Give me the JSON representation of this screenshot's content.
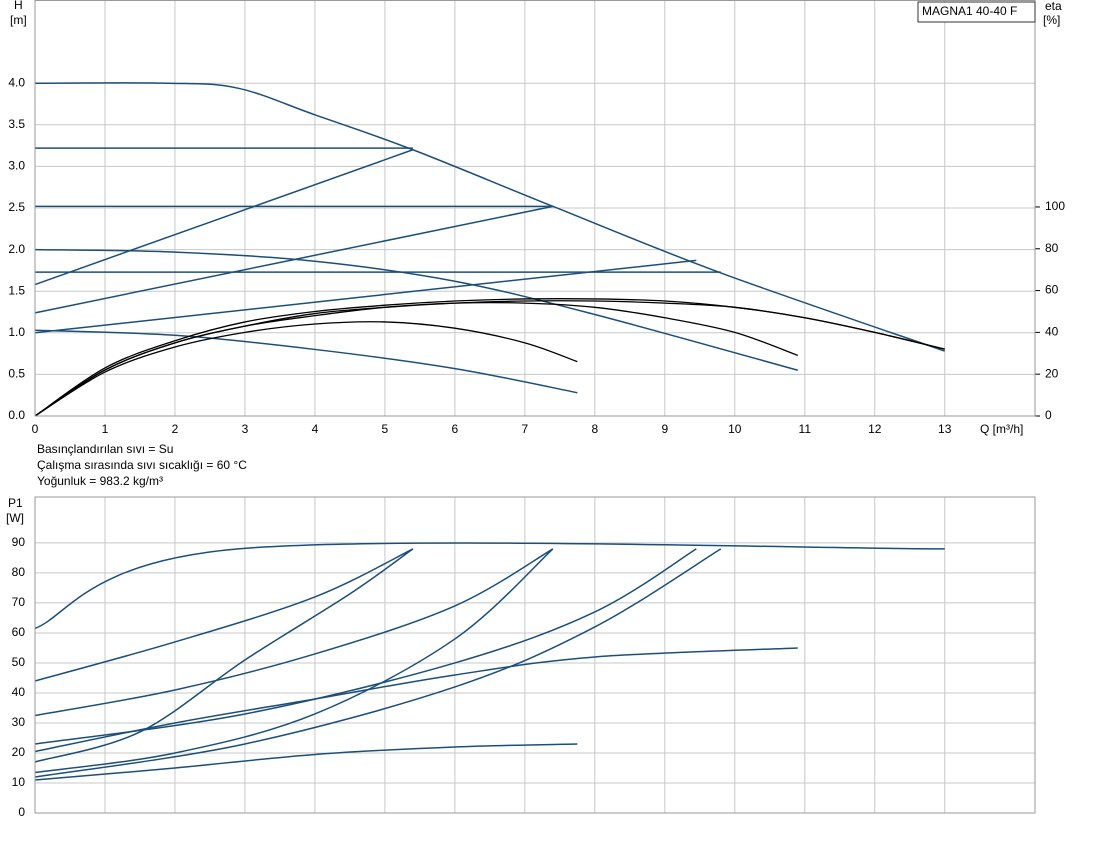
{
  "chart_data": [
    {
      "type": "line",
      "title": "MAGNA1 40-40 F",
      "ylabel": "H",
      "yunit": "[m]",
      "y2label": "eta",
      "y2unit": "[%]",
      "xlabel": "Q [m³/h]",
      "annotations": [
        "Basınçlandırılan sıvı = Su",
        "Çalışma sırasında sıvı sıcaklığı = 60 °C",
        "Yoğunluk = 983.2 kg/m³"
      ],
      "xlim": [
        0,
        14.29
      ],
      "xticks": [
        0,
        1,
        2,
        3,
        4,
        5,
        6,
        7,
        8,
        9,
        10,
        11,
        12,
        13
      ],
      "ylim": [
        0,
        5
      ],
      "yticks": [
        {
          "value": 0,
          "label": "0.0"
        },
        0.5,
        {
          "value": 1,
          "label": "1.0"
        },
        1.5,
        {
          "value": 2,
          "label": "2.0"
        },
        2.5,
        {
          "value": 3,
          "label": "3.0"
        },
        3.5,
        {
          "value": 4,
          "label": "4.0"
        }
      ],
      "y2lim": [
        0,
        199
      ],
      "y2ticks": [
        0,
        20,
        40,
        60,
        80,
        100
      ],
      "grid": true,
      "series": [
        {
          "color": "#1b4f7a",
          "x": [
            0,
            1.9,
            2.9,
            4,
            5.4,
            7.4,
            9.8,
            13
          ],
          "values": [
            4.0,
            4.0,
            3.94,
            3.62,
            3.2,
            2.52,
            1.72,
            0.78
          ]
        },
        {
          "color": "#1b4f7a",
          "x": [
            0,
            5.4
          ],
          "values": [
            3.22,
            3.22
          ]
        },
        {
          "color": "#1b4f7a",
          "x": [
            0,
            7.4
          ],
          "values": [
            2.52,
            2.52
          ]
        },
        {
          "color": "#1b4f7a",
          "x": [
            0,
            9.8
          ],
          "values": [
            1.73,
            1.73
          ]
        },
        {
          "color": "#1b4f7a",
          "x": [
            0,
            5.4
          ],
          "values": [
            1.58,
            3.2
          ]
        },
        {
          "color": "#1b4f7a",
          "x": [
            0,
            7.4
          ],
          "values": [
            1.24,
            2.52
          ]
        },
        {
          "color": "#1b4f7a",
          "x": [
            0,
            9.45
          ],
          "values": [
            1.0,
            1.87
          ]
        },
        {
          "color": "#1b4f7a",
          "x": [
            0,
            2,
            4,
            6,
            8,
            10.9
          ],
          "values": [
            2.0,
            1.97,
            1.86,
            1.62,
            1.22,
            0.55
          ]
        },
        {
          "color": "#1b4f7a",
          "x": [
            0,
            2,
            4,
            6,
            7.75
          ],
          "values": [
            1.03,
            0.97,
            0.8,
            0.57,
            0.28
          ]
        },
        {
          "color": "#000000",
          "axis": "y2",
          "x": [
            0,
            1,
            2,
            3,
            4,
            5,
            6,
            7,
            7.75
          ],
          "values": [
            0,
            21,
            33,
            40,
            44,
            45,
            42,
            35,
            26
          ]
        },
        {
          "color": "#000000",
          "axis": "y2",
          "x": [
            0,
            1,
            2,
            3,
            4,
            5,
            6,
            7,
            8,
            9,
            10,
            10.9
          ],
          "values": [
            0,
            22,
            35,
            43,
            48,
            52,
            54,
            54,
            52,
            47,
            40,
            29
          ]
        },
        {
          "color": "#000000",
          "axis": "y2",
          "x": [
            0,
            1,
            2,
            3,
            4,
            5,
            6,
            7,
            8,
            9,
            10,
            11,
            12,
            13
          ],
          "values": [
            0,
            23,
            36,
            45,
            50,
            53,
            55,
            56,
            56,
            55,
            52,
            47,
            40,
            32
          ]
        },
        {
          "color": "#000000",
          "axis": "y2",
          "x": [
            0,
            1,
            2,
            3,
            4,
            5,
            6,
            7,
            8,
            9,
            10,
            11,
            12,
            13
          ],
          "values": [
            0,
            22,
            35,
            43,
            49,
            52,
            54,
            55,
            55,
            54,
            52,
            47,
            40,
            32
          ]
        }
      ]
    },
    {
      "type": "line",
      "ylabel": "P1",
      "yunit": "[W]",
      "xlim": [
        0,
        14.29
      ],
      "xticks": [
        0,
        1,
        2,
        3,
        4,
        5,
        6,
        7,
        8,
        9,
        10,
        11,
        12,
        13
      ],
      "ylim": [
        0,
        105.3
      ],
      "yticks": [
        0,
        10,
        20,
        30,
        40,
        50,
        60,
        70,
        80,
        90
      ],
      "grid": true,
      "series": [
        {
          "color": "#1b4f7a",
          "x": [
            0,
            2.9,
            13
          ],
          "values": [
            61.5,
            88,
            88
          ]
        },
        {
          "color": "#1b4f7a",
          "x": [
            0,
            2,
            4,
            5.4
          ],
          "values": [
            44,
            57,
            72,
            88
          ]
        },
        {
          "color": "#1b4f7a",
          "x": [
            0,
            2,
            4,
            6,
            7.4
          ],
          "values": [
            32.5,
            41,
            53,
            69,
            88
          ]
        },
        {
          "color": "#1b4f7a",
          "x": [
            0,
            3,
            6,
            8,
            9.45
          ],
          "values": [
            23,
            33,
            50,
            67,
            88
          ]
        },
        {
          "color": "#1b4f7a",
          "x": [
            0,
            1.5,
            3,
            4.5,
            5.4
          ],
          "values": [
            17,
            27,
            51,
            73,
            88
          ]
        },
        {
          "color": "#1b4f7a",
          "x": [
            0,
            2,
            4,
            6,
            7.4
          ],
          "values": [
            13.5,
            20,
            33,
            58,
            88
          ]
        },
        {
          "color": "#1b4f7a",
          "x": [
            0,
            3,
            6,
            8,
            9.8
          ],
          "values": [
            12,
            23,
            42,
            62,
            88
          ]
        },
        {
          "color": "#1b4f7a",
          "x": [
            0,
            2,
            4,
            6,
            8,
            10.9
          ],
          "values": [
            20.5,
            30,
            38,
            46,
            52,
            55
          ]
        },
        {
          "color": "#1b4f7a",
          "x": [
            0,
            2,
            4,
            6,
            7.75
          ],
          "values": [
            11,
            15,
            19.5,
            22,
            23
          ]
        }
      ]
    }
  ]
}
